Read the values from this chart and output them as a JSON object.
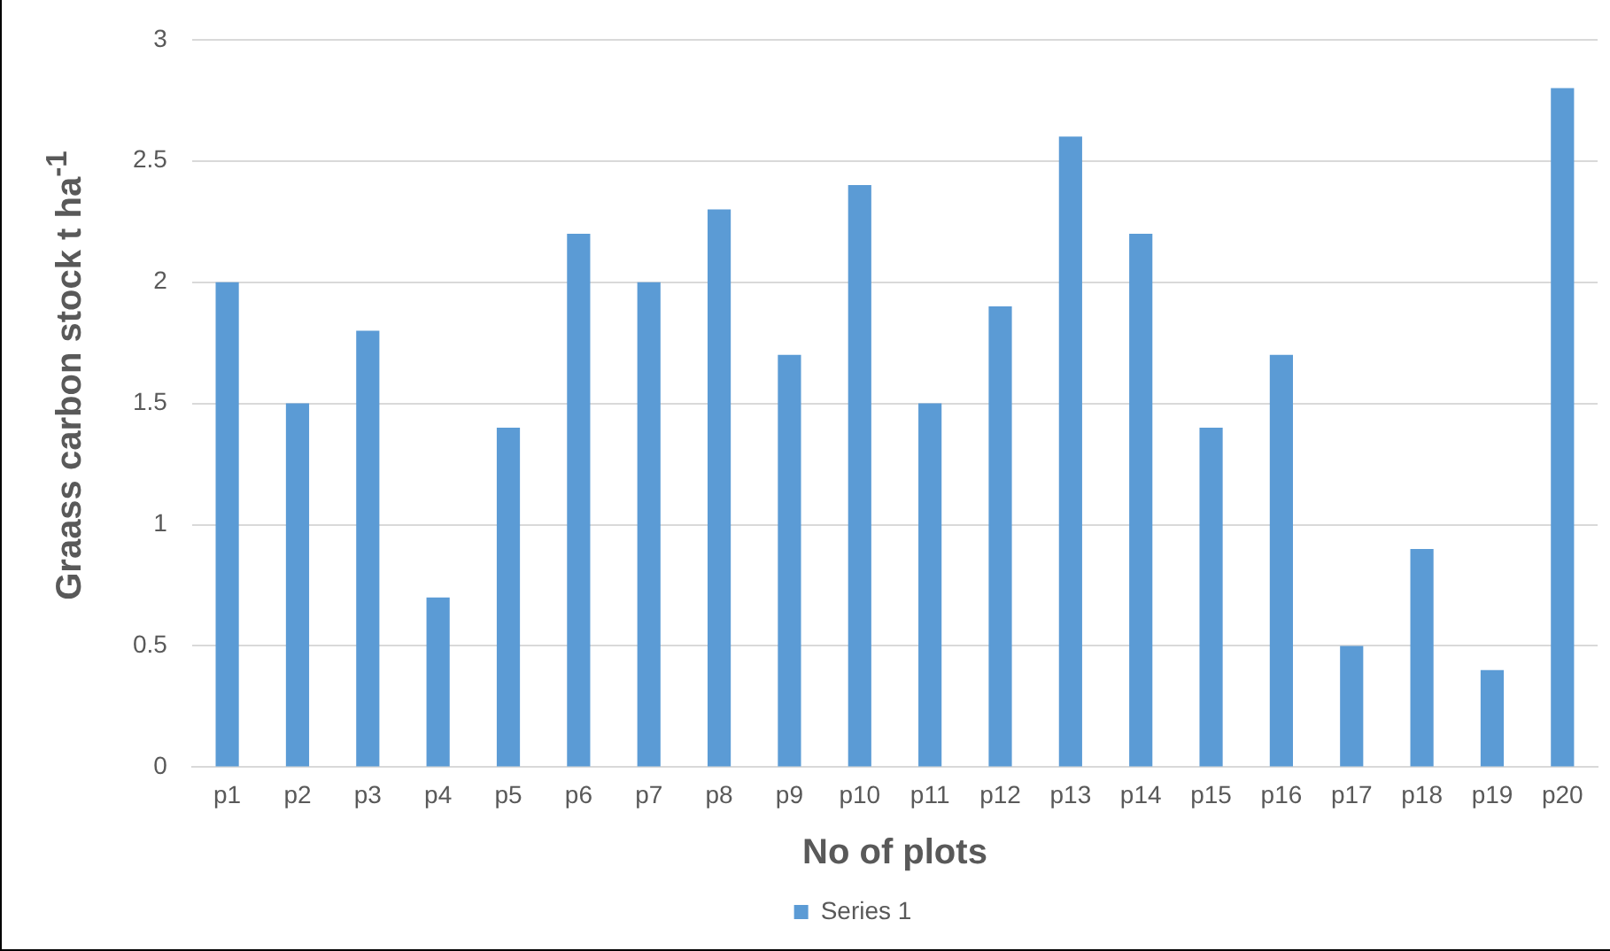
{
  "chart_data": {
    "type": "bar",
    "xlabel": "No of plots",
    "ylabel": "Graass carbon stock t ha$^{-1}$",
    "categories": [
      "p1",
      "p2",
      "p3",
      "p4",
      "p5",
      "p6",
      "p7",
      "p8",
      "p9",
      "p10",
      "p11",
      "p12",
      "p13",
      "p14",
      "p15",
      "p16",
      "p17",
      "p18",
      "p19",
      "p20"
    ],
    "series": [
      {
        "name": "Series 1",
        "color": "#5b9bd5",
        "values": [
          2.0,
          1.5,
          1.8,
          0.7,
          1.4,
          2.2,
          2.0,
          2.3,
          1.7,
          2.4,
          1.5,
          1.9,
          2.6,
          2.2,
          1.4,
          1.7,
          0.5,
          0.9,
          0.4,
          2.8
        ]
      }
    ],
    "ylim": [
      0,
      3
    ],
    "yticks": [
      0,
      0.5,
      1,
      1.5,
      2,
      2.5,
      3
    ],
    "grid": "y",
    "legend": "bottom"
  }
}
